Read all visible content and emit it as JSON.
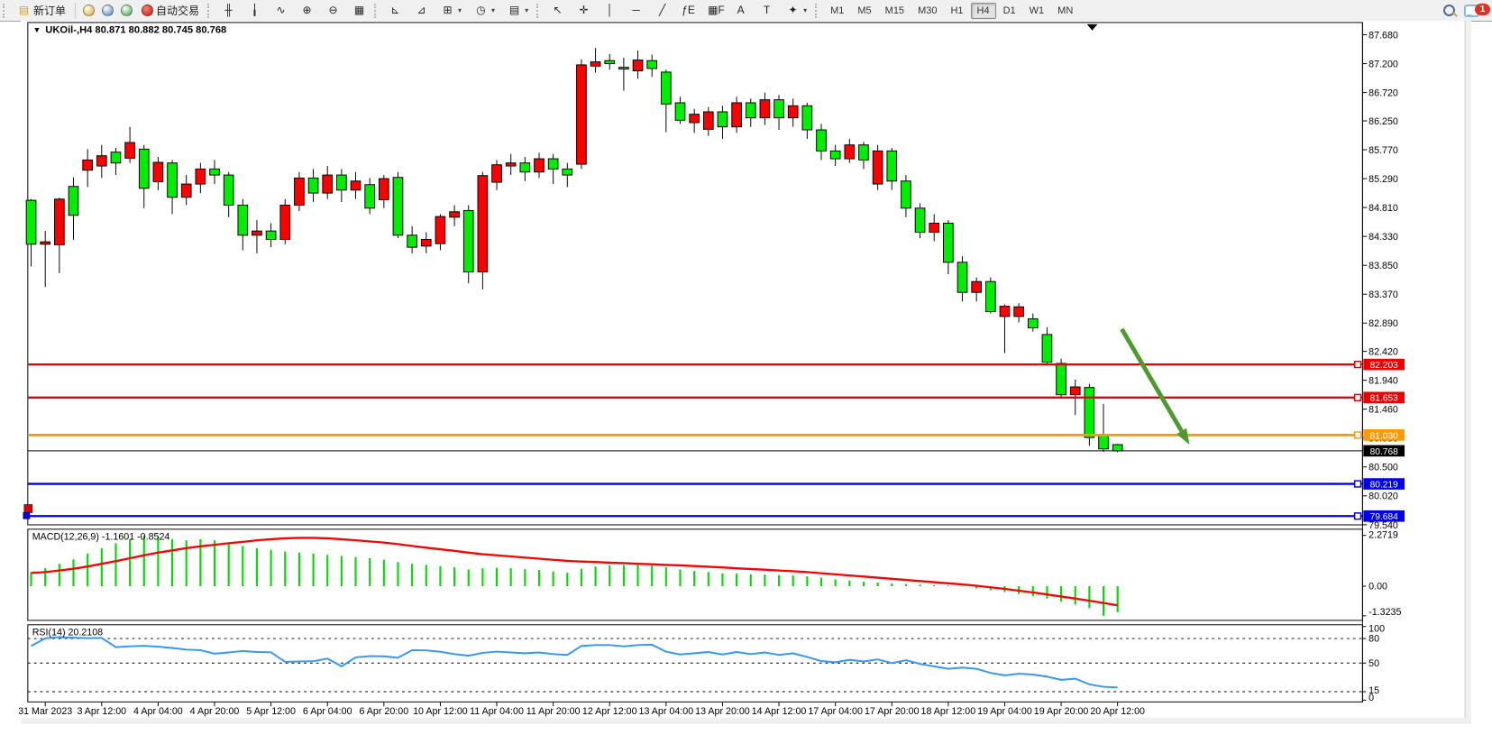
{
  "toolbar": {
    "new_order_label": "新订单",
    "auto_trading_label": "自动交易",
    "system_icons": [
      {
        "name": "symbols-icon",
        "glyph": "◆",
        "color": "#d9a520"
      },
      {
        "name": "market-watch-icon",
        "glyph": "▣",
        "color": "#4a7fc0"
      },
      {
        "name": "signals-icon",
        "glyph": "◉",
        "color": "#3aa23a"
      }
    ],
    "chart_icons": [
      {
        "name": "bar-chart-icon",
        "glyph": "╫"
      },
      {
        "name": "candlestick-chart-icon",
        "glyph": "╽"
      },
      {
        "name": "line-chart-icon",
        "glyph": "∿"
      },
      {
        "name": "zoom-in-icon",
        "glyph": "⊕"
      },
      {
        "name": "zoom-out-icon",
        "glyph": "⊖"
      },
      {
        "name": "tile-windows-icon",
        "glyph": "▦"
      }
    ],
    "indicator_icons": [
      {
        "name": "profile-charts-icon",
        "glyph": "⊾"
      },
      {
        "name": "indicator-window-icon",
        "glyph": "⊿"
      },
      {
        "name": "add-indicator-icon",
        "glyph": "⊞",
        "dropdown": true
      },
      {
        "name": "periods-clock-icon",
        "glyph": "◷",
        "dropdown": true
      },
      {
        "name": "chart-template-icon",
        "glyph": "▤",
        "dropdown": true
      }
    ],
    "draw_icons": [
      {
        "name": "cursor-icon",
        "glyph": "↖"
      },
      {
        "name": "crosshair-icon",
        "glyph": "✛"
      },
      {
        "name": "vertical-line-icon",
        "glyph": "│"
      },
      {
        "name": "horizontal-line-icon",
        "glyph": "─"
      },
      {
        "name": "trendline-icon",
        "glyph": "╱"
      },
      {
        "name": "fibonacci-icon",
        "glyph": "ƒE"
      },
      {
        "name": "fibo-grid-icon",
        "glyph": "▦F"
      },
      {
        "name": "text-icon",
        "glyph": "A"
      },
      {
        "name": "text-label-icon",
        "glyph": "T"
      },
      {
        "name": "arrows-tool-icon",
        "glyph": "✦",
        "dropdown": true
      }
    ],
    "timeframes": [
      "M1",
      "M5",
      "M15",
      "M30",
      "H1",
      "H4",
      "D1",
      "W1",
      "MN"
    ],
    "active_timeframe": "H4",
    "notification_badge": "1"
  },
  "chart": {
    "title": "UKOil-,H4  80.871 80.882 80.745 80.768",
    "symbol": "UKOil-",
    "timeframe": "H4",
    "open": "80.871",
    "high": "80.882",
    "low": "80.745",
    "close": "80.768"
  },
  "price_axis_labels": [
    "87.680",
    "87.200",
    "86.720",
    "86.250",
    "85.770",
    "85.290",
    "84.810",
    "84.330",
    "83.850",
    "83.370",
    "82.890",
    "82.420",
    "81.940",
    "81.460",
    "80.980",
    "80.500",
    "80.020",
    "79.540"
  ],
  "chart_data": [
    {
      "type": "candlestick",
      "title": "UKOil-,H4",
      "timeframe": "H4",
      "ylim": [
        79.54,
        87.68
      ],
      "up_color": "#ff0000",
      "down_color": "#00ee00",
      "note": "Chinese color convention: red = bullish, green = bearish",
      "x_labels": [
        "31 Mar 2023",
        "3 Apr 12:00",
        "4 Apr 04:00",
        "4 Apr 20:00",
        "5 Apr 12:00",
        "6 Apr 04:00",
        "6 Apr 20:00",
        "10 Apr 12:00",
        "11 Apr 04:00",
        "11 Apr 20:00",
        "12 Apr 12:00",
        "13 Apr 04:00",
        "13 Apr 20:00",
        "14 Apr 12:00",
        "17 Apr 04:00",
        "17 Apr 20:00",
        "18 Apr 12:00",
        "19 Apr 04:00",
        "19 Apr 20:00",
        "20 Apr 12:00"
      ],
      "x_label_every_n_bars": 4,
      "x_label_first_bar": 1,
      "ohlc": [
        [
          84.93,
          84.95,
          83.83,
          84.2
        ],
        [
          84.2,
          84.42,
          83.49,
          84.24
        ],
        [
          84.19,
          84.97,
          83.72,
          84.95
        ],
        [
          85.16,
          85.31,
          84.27,
          84.68
        ],
        [
          85.43,
          85.78,
          85.15,
          85.6
        ],
        [
          85.5,
          85.85,
          85.3,
          85.67
        ],
        [
          85.73,
          85.8,
          85.35,
          85.55
        ],
        [
          85.63,
          86.15,
          85.55,
          85.89
        ],
        [
          85.78,
          85.85,
          84.8,
          85.13
        ],
        [
          85.24,
          85.65,
          85.1,
          85.56
        ],
        [
          85.55,
          85.6,
          84.7,
          84.98
        ],
        [
          84.98,
          85.35,
          84.85,
          85.2
        ],
        [
          85.2,
          85.55,
          85.05,
          85.45
        ],
        [
          85.45,
          85.6,
          85.2,
          85.35
        ],
        [
          85.35,
          85.4,
          84.65,
          84.85
        ],
        [
          84.85,
          84.95,
          84.1,
          84.35
        ],
        [
          84.35,
          84.6,
          84.05,
          84.42
        ],
        [
          84.42,
          84.55,
          84.15,
          84.28
        ],
        [
          84.28,
          84.95,
          84.2,
          84.85
        ],
        [
          84.85,
          85.4,
          84.75,
          85.3
        ],
        [
          85.3,
          85.45,
          84.9,
          85.05
        ],
        [
          85.05,
          85.5,
          84.95,
          85.35
        ],
        [
          85.35,
          85.45,
          84.9,
          85.1
        ],
        [
          85.1,
          85.4,
          84.95,
          85.25
        ],
        [
          85.19,
          85.3,
          84.7,
          84.8
        ],
        [
          84.94,
          85.35,
          84.8,
          85.29
        ],
        [
          85.31,
          85.4,
          84.3,
          84.35
        ],
        [
          84.35,
          84.5,
          84.05,
          84.15
        ],
        [
          84.17,
          84.4,
          84.05,
          84.28
        ],
        [
          84.21,
          84.7,
          84.1,
          84.66
        ],
        [
          84.65,
          84.85,
          84.5,
          84.74
        ],
        [
          84.76,
          84.85,
          83.55,
          83.74
        ],
        [
          83.74,
          85.4,
          83.45,
          85.34
        ],
        [
          85.23,
          85.6,
          85.1,
          85.52
        ],
        [
          85.5,
          85.7,
          85.35,
          85.55
        ],
        [
          85.55,
          85.65,
          85.25,
          85.4
        ],
        [
          85.4,
          85.72,
          85.3,
          85.62
        ],
        [
          85.62,
          85.7,
          85.2,
          85.45
        ],
        [
          85.45,
          85.55,
          85.15,
          85.35
        ],
        [
          85.53,
          87.27,
          85.45,
          87.18
        ],
        [
          87.16,
          87.46,
          87.05,
          87.23
        ],
        [
          87.25,
          87.36,
          87.1,
          87.2
        ],
        [
          87.14,
          87.3,
          86.75,
          87.11
        ],
        [
          87.08,
          87.42,
          86.95,
          87.26
        ],
        [
          87.25,
          87.35,
          86.98,
          87.12
        ],
        [
          87.06,
          87.1,
          86.06,
          86.53
        ],
        [
          86.55,
          86.65,
          86.2,
          86.26
        ],
        [
          86.22,
          86.45,
          86.05,
          86.36
        ],
        [
          86.11,
          86.48,
          86.0,
          86.4
        ],
        [
          86.4,
          86.5,
          85.95,
          86.15
        ],
        [
          86.15,
          86.65,
          86.05,
          86.55
        ],
        [
          86.55,
          86.62,
          86.15,
          86.3
        ],
        [
          86.3,
          86.72,
          86.18,
          86.6
        ],
        [
          86.6,
          86.68,
          86.1,
          86.3
        ],
        [
          86.3,
          86.62,
          86.15,
          86.5
        ],
        [
          86.5,
          86.55,
          85.95,
          86.1
        ],
        [
          86.1,
          86.2,
          85.6,
          85.75
        ],
        [
          85.75,
          85.85,
          85.5,
          85.62
        ],
        [
          85.62,
          85.95,
          85.55,
          85.85
        ],
        [
          85.85,
          85.9,
          85.45,
          85.6
        ],
        [
          85.2,
          85.85,
          85.1,
          85.75
        ],
        [
          85.75,
          85.8,
          85.1,
          85.25
        ],
        [
          85.25,
          85.35,
          84.65,
          84.8
        ],
        [
          84.8,
          84.88,
          84.3,
          84.4
        ],
        [
          84.4,
          84.7,
          84.25,
          84.55
        ],
        [
          84.55,
          84.6,
          83.7,
          83.9
        ],
        [
          83.9,
          84.0,
          83.25,
          83.4
        ],
        [
          83.4,
          83.65,
          83.25,
          83.58
        ],
        [
          83.58,
          83.65,
          83.05,
          83.08
        ],
        [
          83.0,
          83.2,
          82.39,
          83.17
        ],
        [
          83.0,
          83.22,
          82.9,
          83.16
        ],
        [
          82.96,
          83.05,
          82.75,
          82.81
        ],
        [
          82.7,
          82.82,
          82.2,
          82.24
        ],
        [
          82.22,
          82.3,
          81.65,
          81.7
        ],
        [
          81.7,
          81.95,
          81.36,
          81.83
        ],
        [
          81.82,
          81.88,
          80.85,
          80.99
        ],
        [
          81.02,
          81.55,
          80.75,
          80.8
        ],
        [
          80.871,
          80.882,
          80.745,
          80.768
        ]
      ],
      "levels": [
        {
          "price": 82.203,
          "color": "#ee0000",
          "label": "82.203"
        },
        {
          "price": 81.653,
          "color": "#ee0000",
          "label": "81.653"
        },
        {
          "price": 81.03,
          "color": "#ff9900",
          "label": "81.030"
        },
        {
          "price": 80.768,
          "color": "#000000",
          "label": "80.768",
          "role": "current-bid"
        },
        {
          "price": 80.219,
          "color": "#0000ee",
          "label": "80.219"
        },
        {
          "price": 79.684,
          "color": "#0000ee",
          "label": "79.684"
        }
      ],
      "arrow_annotation": {
        "from_bar": 77.3,
        "from_price": 82.79,
        "to_bar": 82.1,
        "to_price": 80.87,
        "color": "#4e9a2e"
      },
      "top_marker_bar": 75.2
    },
    {
      "type": "bar+line",
      "name": "MACD(12,26,9)",
      "label": "MACD(12,26,9) -1.1601 -0.8524",
      "current_macd": -1.1601,
      "current_signal": -0.8524,
      "axis_labels": [
        "2.2719",
        "0.00",
        "-1.3235"
      ],
      "ylim": [
        -1.3235,
        2.2719
      ],
      "histogram_color": "#00dd00",
      "signal_color": "#ff0000",
      "histogram": [
        0.63,
        0.8,
        1.0,
        1.2,
        1.45,
        1.7,
        1.92,
        2.1,
        2.27,
        2.2,
        2.1,
        2.05,
        2.1,
        2.05,
        1.95,
        1.8,
        1.7,
        1.62,
        1.55,
        1.5,
        1.45,
        1.4,
        1.35,
        1.3,
        1.25,
        1.18,
        1.08,
        1.0,
        0.95,
        0.9,
        0.85,
        0.75,
        0.8,
        0.82,
        0.8,
        0.76,
        0.72,
        0.66,
        0.6,
        0.78,
        0.88,
        0.93,
        0.95,
        0.96,
        0.93,
        0.85,
        0.75,
        0.68,
        0.63,
        0.58,
        0.56,
        0.53,
        0.52,
        0.5,
        0.48,
        0.44,
        0.38,
        0.3,
        0.25,
        0.2,
        0.16,
        0.12,
        0.1,
        0.07,
        0.05,
        0.03,
        -0.02,
        -0.1,
        -0.18,
        -0.26,
        -0.35,
        -0.44,
        -0.55,
        -0.68,
        -0.82,
        -0.98,
        -1.32,
        -1.16
      ],
      "signal": [
        0.59,
        0.63,
        0.7,
        0.78,
        0.88,
        1.0,
        1.12,
        1.25,
        1.38,
        1.5,
        1.6,
        1.7,
        1.78,
        1.85,
        1.92,
        1.98,
        2.05,
        2.1,
        2.14,
        2.16,
        2.16,
        2.14,
        2.1,
        2.05,
        2.0,
        1.95,
        1.88,
        1.8,
        1.72,
        1.65,
        1.58,
        1.5,
        1.43,
        1.38,
        1.33,
        1.28,
        1.23,
        1.18,
        1.13,
        1.1,
        1.08,
        1.05,
        1.03,
        1.0,
        0.98,
        0.95,
        0.93,
        0.9,
        0.87,
        0.84,
        0.8,
        0.77,
        0.74,
        0.7,
        0.67,
        0.63,
        0.58,
        0.53,
        0.48,
        0.43,
        0.38,
        0.33,
        0.28,
        0.23,
        0.18,
        0.13,
        0.08,
        0.02,
        -0.05,
        -0.12,
        -0.2,
        -0.28,
        -0.37,
        -0.46,
        -0.55,
        -0.65,
        -0.75,
        -0.8524
      ]
    },
    {
      "type": "line",
      "name": "RSI(14)",
      "label": "RSI(14) 20.2108",
      "current": 20.2108,
      "axis_labels": [
        "100",
        "80",
        "50",
        "15",
        "0"
      ],
      "levels": [
        80,
        50,
        15
      ],
      "ylim": [
        0,
        100
      ],
      "line_color": "#3296fa",
      "values": [
        71.0,
        80.3,
        81.8,
        81.0,
        80.5,
        80.8,
        69.5,
        70.5,
        71.2,
        70.0,
        68.5,
        66.5,
        65.8,
        61.5,
        63.0,
        64.8,
        63.5,
        63.2,
        51.5,
        52.0,
        52.3,
        55.5,
        46.0,
        57.0,
        58.5,
        58.3,
        56.5,
        65.8,
        65.5,
        63.8,
        61.0,
        59.0,
        62.5,
        64.0,
        63.0,
        62.0,
        63.0,
        61.0,
        60.0,
        71.0,
        72.0,
        72.0,
        70.5,
        72.0,
        72.5,
        64.0,
        60.5,
        62.0,
        63.5,
        60.5,
        63.5,
        61.0,
        63.0,
        60.0,
        62.0,
        57.5,
        52.5,
        51.0,
        54.0,
        52.0,
        54.5,
        50.0,
        53.5,
        49.0,
        46.0,
        43.0,
        44.5,
        43.0,
        38.0,
        35.0,
        37.0,
        36.0,
        33.5,
        29.5,
        31.0,
        24.0,
        21.0,
        20.21
      ]
    }
  ]
}
